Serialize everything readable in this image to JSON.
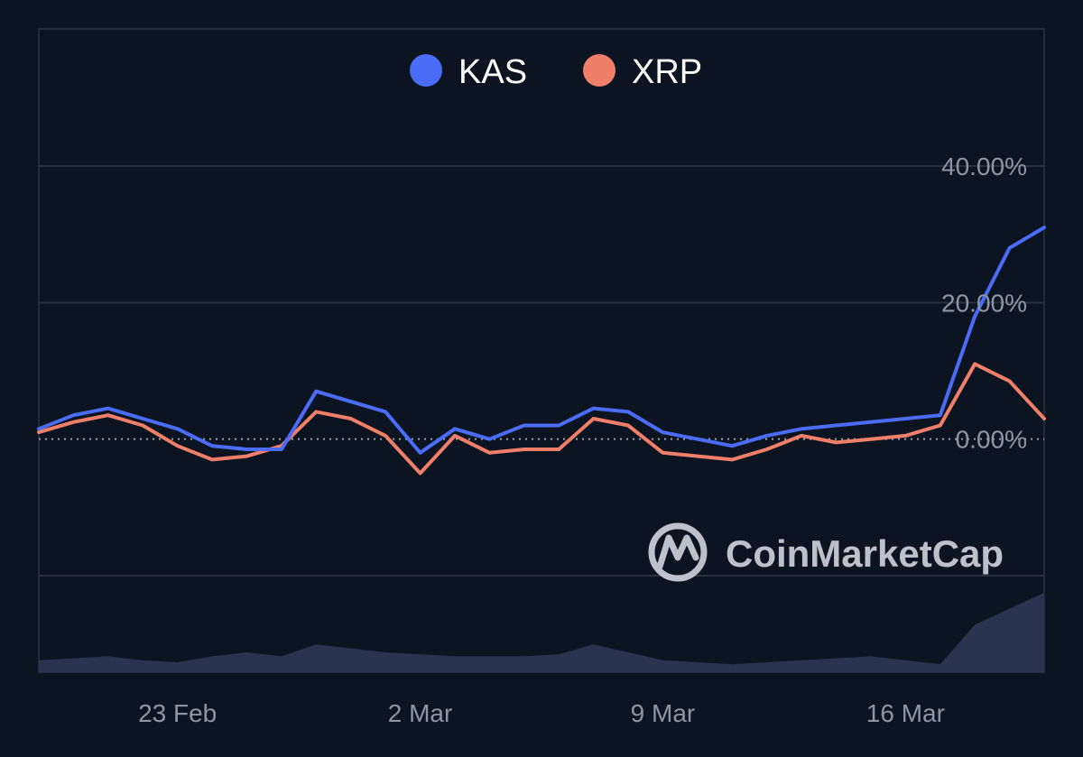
{
  "chart_data": {
    "type": "line",
    "title": "",
    "xlabel": "",
    "ylabel": "",
    "legend_position": "top-center",
    "grid": true,
    "x_ticks": [
      "23 Feb",
      "2 Mar",
      "9 Mar",
      "16 Mar"
    ],
    "x_tick_dates": [
      "2025-02-23",
      "2025-03-02",
      "2025-03-09",
      "2025-03-16"
    ],
    "x_range": [
      "2025-02-19",
      "2025-03-20"
    ],
    "y_ticks": [
      "40.00%",
      "20.00%",
      "0.00%"
    ],
    "y_tick_values": [
      40,
      20,
      0
    ],
    "ylim": [
      -20,
      40
    ],
    "baseline_value": 0,
    "dates": [
      "2025-02-19",
      "2025-02-20",
      "2025-02-21",
      "2025-02-22",
      "2025-02-23",
      "2025-02-24",
      "2025-02-25",
      "2025-02-26",
      "2025-02-27",
      "2025-02-28",
      "2025-03-01",
      "2025-03-02",
      "2025-03-03",
      "2025-03-04",
      "2025-03-05",
      "2025-03-06",
      "2025-03-07",
      "2025-03-08",
      "2025-03-09",
      "2025-03-10",
      "2025-03-11",
      "2025-03-12",
      "2025-03-13",
      "2025-03-14",
      "2025-03-15",
      "2025-03-16",
      "2025-03-17",
      "2025-03-18",
      "2025-03-19",
      "2025-03-20"
    ],
    "series": [
      {
        "name": "KAS",
        "color": "#4a6cf7",
        "values": [
          1.5,
          3.5,
          4.5,
          3.0,
          1.5,
          -1.0,
          -1.5,
          -1.5,
          7.0,
          5.5,
          4.0,
          -2.0,
          1.5,
          0.0,
          2.0,
          2.0,
          4.5,
          4.0,
          1.0,
          0.0,
          -1.0,
          0.5,
          1.5,
          2.0,
          2.5,
          3.0,
          3.5,
          18.0,
          28.0,
          31.0
        ]
      },
      {
        "name": "XRP",
        "color": "#f07f6a",
        "values": [
          1.0,
          2.5,
          3.5,
          2.0,
          -1.0,
          -3.0,
          -2.5,
          -1.0,
          4.0,
          3.0,
          0.5,
          -5.0,
          0.5,
          -2.0,
          -1.5,
          -1.5,
          3.0,
          2.0,
          -2.0,
          -2.5,
          -3.0,
          -1.5,
          0.5,
          -0.5,
          0.0,
          0.5,
          2.0,
          11.0,
          8.5,
          3.0
        ]
      }
    ],
    "volume": {
      "color": "#2a3350",
      "values": [
        3,
        3.5,
        4,
        3,
        2.5,
        4,
        5,
        4,
        7,
        6,
        5,
        4.5,
        4,
        4,
        4,
        4.5,
        7,
        5,
        3,
        2.5,
        2,
        2.5,
        3,
        3.5,
        4,
        3,
        2,
        12,
        16,
        20
      ]
    }
  },
  "legend": [
    {
      "label": "KAS",
      "color": "#4a6cf7"
    },
    {
      "label": "XRP",
      "color": "#f07f6a"
    }
  ],
  "watermark": {
    "text": "CoinMarketCap"
  },
  "colors": {
    "background": "#0d1421",
    "frame": "#232a3b",
    "grid": "#2a3040",
    "axis_text": "#8e95a8",
    "legend_text": "#ffffff",
    "watermark": "#c8cbd4"
  }
}
